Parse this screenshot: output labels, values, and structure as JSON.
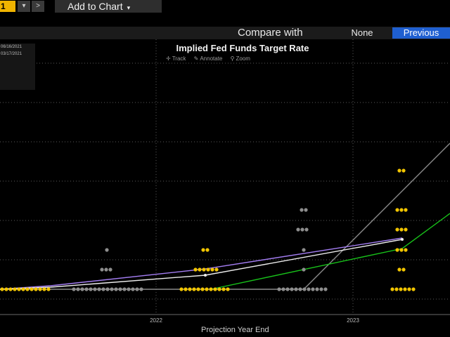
{
  "toolbar": {
    "number_field": "1",
    "dropdown_caret": "▾",
    "next_arrow": ">",
    "add_to_chart_label": "Add to Chart",
    "add_to_chart_caret": "▾"
  },
  "compare": {
    "label": "Compare with",
    "options": [
      "None",
      "Previous"
    ],
    "selected": "Previous"
  },
  "date_legend": [
    "06/16/2021",
    "03/17/2021"
  ],
  "chart_header": {
    "title": "Implied Fed Funds Target Rate",
    "tools": [
      {
        "icon": "crosshair-icon",
        "label": "Track"
      },
      {
        "icon": "pencil-icon",
        "label": "Annotate"
      },
      {
        "icon": "magnifier-icon",
        "label": "Zoom"
      }
    ]
  },
  "colors": {
    "background": "#000000",
    "dots_current": "#f2c500",
    "dots_previous": "#8e8e8e",
    "line_purple": "#a37df2",
    "line_white": "#eeeeee",
    "line_green": "#18c21a",
    "line_gray": "#8a8a8a",
    "selected_option": "#1f5fd0",
    "number_field": "#f0b400"
  },
  "chart_data": {
    "type": "scatter",
    "title": "Implied Fed Funds Target Rate",
    "xlabel": "Projection Year End",
    "ylabel": "",
    "x_ticks": [
      "2022",
      "2023"
    ],
    "y_ticks": [],
    "grid": true,
    "series": [
      {
        "name": "06/16/2021",
        "values": [
          0.125,
          0.6,
          1.1
        ]
      },
      {
        "name": "03/17/2021",
        "values": [
          0.125,
          0.125,
          0.6
        ]
      }
    ]
  }
}
